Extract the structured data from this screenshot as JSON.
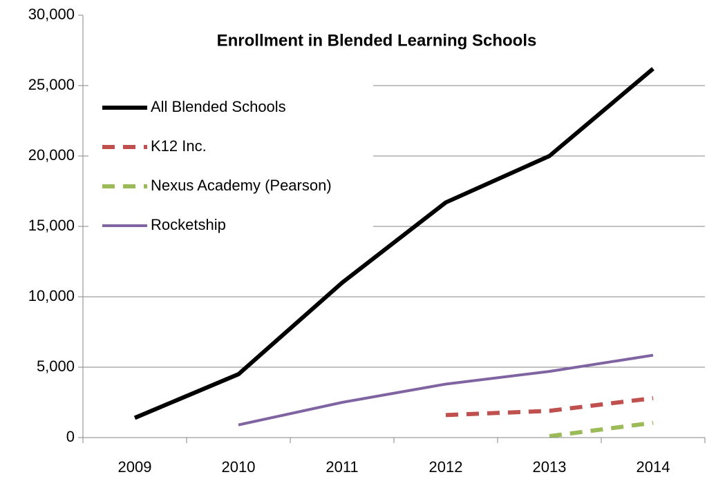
{
  "chart_data": {
    "type": "line",
    "title": "Enrollment in Blended Learning Schools",
    "categories": [
      "2009",
      "2010",
      "2011",
      "2012",
      "2013",
      "2014"
    ],
    "series": [
      {
        "name": "All Blended Schools",
        "color": "#000000",
        "dashed": false,
        "values": [
          1400,
          4500,
          11000,
          16700,
          20000,
          26200
        ]
      },
      {
        "name": "K12 Inc.",
        "color": "#c0504d",
        "dashed": true,
        "values": [
          null,
          null,
          null,
          1600,
          1900,
          2800
        ]
      },
      {
        "name": "Nexus Academy (Pearson)",
        "color": "#9bbb59",
        "dashed": true,
        "values": [
          null,
          null,
          null,
          null,
          100,
          1050
        ]
      },
      {
        "name": "Rocketship",
        "color": "#8064a2",
        "dashed": false,
        "values": [
          null,
          900,
          2500,
          3800,
          4700,
          5850
        ]
      }
    ],
    "ylim": [
      0,
      30000
    ],
    "yticks": [
      0,
      {
        "value": 5000,
        "label": "5,000"
      },
      {
        "value": 10000,
        "label": "10,000"
      },
      {
        "value": 15000,
        "label": "15,000"
      },
      {
        "value": 20000,
        "label": "20,000"
      },
      {
        "value": 25000,
        "label": "25,000"
      },
      {
        "value": 30000,
        "label": "30,000"
      }
    ],
    "grid": true,
    "legend": "top-left"
  }
}
